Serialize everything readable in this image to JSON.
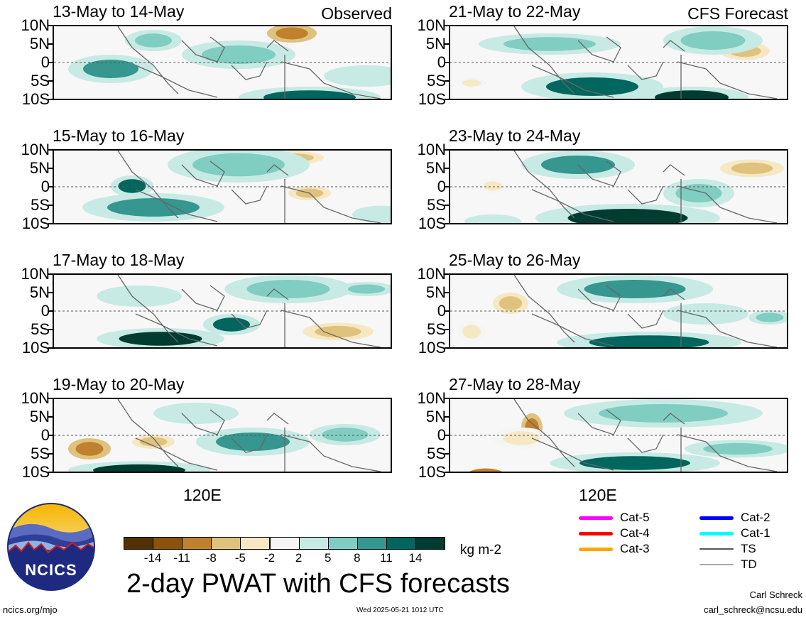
{
  "panels": [
    {
      "title": "13-May to 14-May",
      "tag": "Observed"
    },
    {
      "title": "15-May to 16-May",
      "tag": ""
    },
    {
      "title": "17-May to 18-May",
      "tag": ""
    },
    {
      "title": "19-May to 20-May",
      "tag": ""
    },
    {
      "title": "21-May to 22-May",
      "tag": "CFS Forecast"
    },
    {
      "title": "23-May to 24-May",
      "tag": ""
    },
    {
      "title": "25-May to 26-May",
      "tag": ""
    },
    {
      "title": "27-May to 28-May",
      "tag": ""
    }
  ],
  "y_labels": [
    "10N",
    "5N",
    "0",
    "5S",
    "10S"
  ],
  "x_label": "120E",
  "colorbar": {
    "colors": [
      "#543005",
      "#8c510a",
      "#bf812d",
      "#dfc27d",
      "#f6e8c3",
      "#f5f5f5",
      "#c7eae5",
      "#80cdc1",
      "#35978f",
      "#01665e",
      "#003c30"
    ],
    "labels": [
      "-14",
      "-11",
      "-8",
      "-5",
      "-2",
      "2",
      "5",
      "8",
      "11",
      "14"
    ],
    "units": "kg m-2"
  },
  "legend": {
    "left": [
      {
        "label": "Cat-5",
        "color": "#ff00ff"
      },
      {
        "label": "Cat-4",
        "color": "#ff0000"
      },
      {
        "label": "Cat-3",
        "color": "#ffa500"
      }
    ],
    "right": [
      {
        "label": "Cat-2",
        "color": "#0000ff"
      },
      {
        "label": "Cat-1",
        "color": "#00ffff"
      },
      {
        "label": "TS",
        "color": "#555555"
      },
      {
        "label": "TD",
        "color": "#aaaaaa"
      }
    ]
  },
  "main_title": "2-day PWAT with CFS forecasts",
  "logo_text": "NCICS",
  "footer": {
    "left": "ncics.org/mjo",
    "center": "Wed 2025-05-21 1012 UTC",
    "author": "Carl Schreck",
    "email": "carl_schreck@ncsu.edu"
  }
}
